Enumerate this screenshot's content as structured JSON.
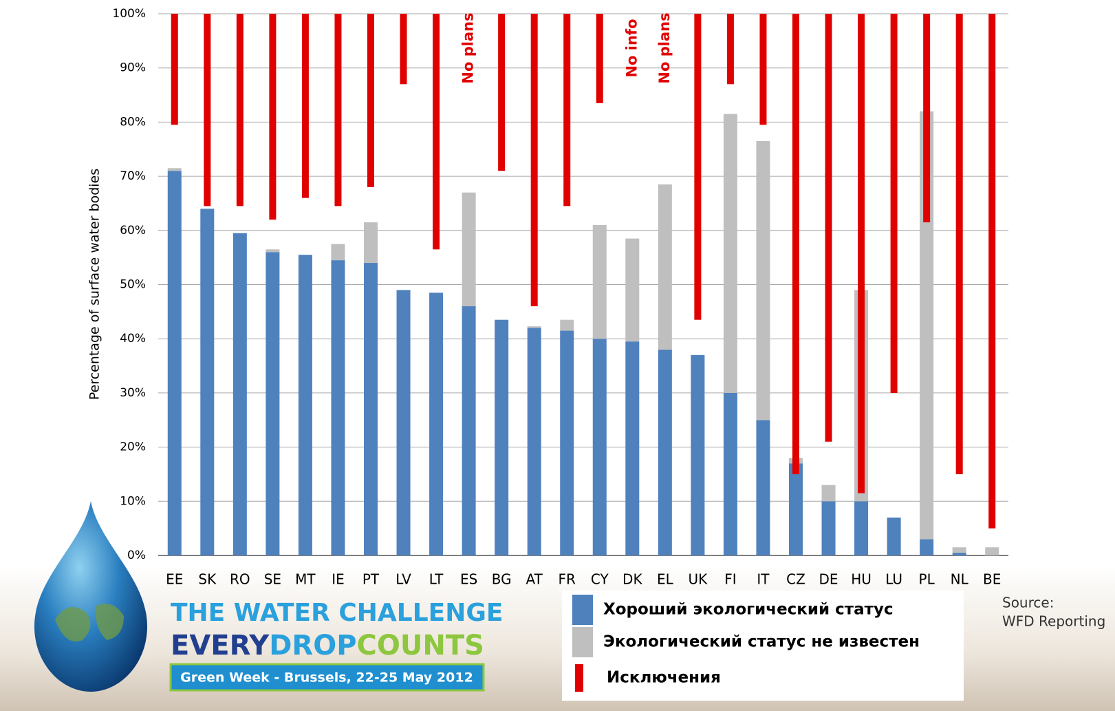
{
  "chart_data": {
    "type": "bar",
    "y_label": "Percentage of surface water bodies",
    "categories": [
      "EE",
      "SK",
      "RO",
      "SE",
      "MT",
      "IE",
      "PT",
      "LV",
      "LT",
      "ES",
      "BG",
      "AT",
      "FR",
      "CY",
      "DK",
      "EL",
      "UK",
      "FI",
      "IT",
      "CZ",
      "DE",
      "HU",
      "LU",
      "PL",
      "NL",
      "BE"
    ],
    "series": [
      {
        "name": "Хороший экологический статус",
        "color": "#4f81bd",
        "values": [
          71,
          64,
          59.5,
          56,
          55.5,
          54.5,
          54,
          49,
          48.5,
          46,
          43.5,
          42,
          41.5,
          40,
          39.5,
          38,
          37,
          30,
          25,
          17,
          10,
          10,
          7,
          3,
          0.5,
          0
        ]
      },
      {
        "name": "Экологический статус не известен",
        "color": "#bfbfbf",
        "values": [
          0.5,
          0,
          0,
          0.5,
          0,
          3,
          7.5,
          0,
          0,
          21,
          0,
          0.3,
          2,
          21,
          19,
          30.5,
          0,
          51.5,
          51.5,
          1,
          3,
          39,
          0,
          79,
          1,
          1.5
        ]
      },
      {
        "name": "Исключения",
        "color": "#e00000",
        "values": [
          20.5,
          35.5,
          35.5,
          38,
          34,
          35.5,
          32,
          13,
          43.5,
          null,
          29,
          54,
          35.5,
          16.5,
          null,
          null,
          56.5,
          13,
          20.5,
          85,
          79,
          88.5,
          70,
          38.5,
          85,
          95
        ]
      }
    ],
    "annotations": [
      {
        "x": "ES",
        "label": "No plans"
      },
      {
        "x": "DK",
        "label": "No info"
      },
      {
        "x": "EL",
        "label": "No plans"
      }
    ],
    "ylim": [
      0,
      100
    ],
    "yticks": [
      {
        "value": 0,
        "label": "0%"
      },
      {
        "value": 10,
        "label": "10%"
      },
      {
        "value": 20,
        "label": "20%"
      },
      {
        "value": 30,
        "label": "30%"
      },
      {
        "value": 40,
        "label": "40%"
      },
      {
        "value": 50,
        "label": "50%"
      },
      {
        "value": 60,
        "label": "60%"
      },
      {
        "value": 70,
        "label": "70%"
      },
      {
        "value": 80,
        "label": "80%"
      },
      {
        "value": 90,
        "label": "90%"
      },
      {
        "value": 100,
        "label": "100%"
      }
    ],
    "grid": true
  },
  "logo": {
    "line1": "THE WATER CHALLENGE",
    "line2_parts": [
      "EVERY",
      "DROP",
      "COUNTS"
    ],
    "banner": "Green Week - Brussels, 22-25 May 2012"
  },
  "source": [
    "Source:",
    "WFD Reporting"
  ]
}
